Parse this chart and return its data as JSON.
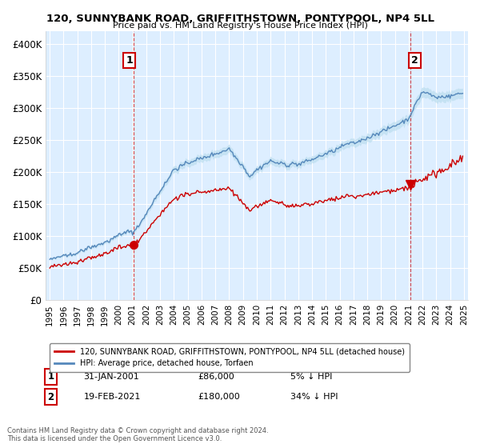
{
  "title": "120, SUNNYBANK ROAD, GRIFFITHSTOWN, PONTYPOOL, NP4 5LL",
  "subtitle": "Price paid vs. HM Land Registry's House Price Index (HPI)",
  "legend_label_red": "120, SUNNYBANK ROAD, GRIFFITHSTOWN, PONTYPOOL, NP4 5LL (detached house)",
  "legend_label_blue": "HPI: Average price, detached house, Torfaen",
  "annotation1_label": "1",
  "annotation1_date": "31-JAN-2001",
  "annotation1_price": "£86,000",
  "annotation1_hpi": "5% ↓ HPI",
  "annotation2_label": "2",
  "annotation2_date": "19-FEB-2021",
  "annotation2_price": "£180,000",
  "annotation2_hpi": "34% ↓ HPI",
  "footer": "Contains HM Land Registry data © Crown copyright and database right 2024.\nThis data is licensed under the Open Government Licence v3.0.",
  "ylim": [
    0,
    420000
  ],
  "yticks": [
    0,
    50000,
    100000,
    150000,
    200000,
    250000,
    300000,
    350000,
    400000
  ],
  "ytick_labels": [
    "£0",
    "£50K",
    "£100K",
    "£150K",
    "£200K",
    "£250K",
    "£300K",
    "£350K",
    "£400K"
  ],
  "red_color": "#cc0000",
  "blue_color": "#5588bb",
  "blue_fill_color": "#ddeeff",
  "vline_color": "#cc0000",
  "background_color": "#ffffff",
  "grid_color": "#cccccc",
  "sale1_x_year": 2001.08,
  "sale1_y": 86000,
  "sale2_x_year": 2021.13,
  "sale2_y": 180000,
  "xlim_left": 1994.7,
  "xlim_right": 2025.3
}
